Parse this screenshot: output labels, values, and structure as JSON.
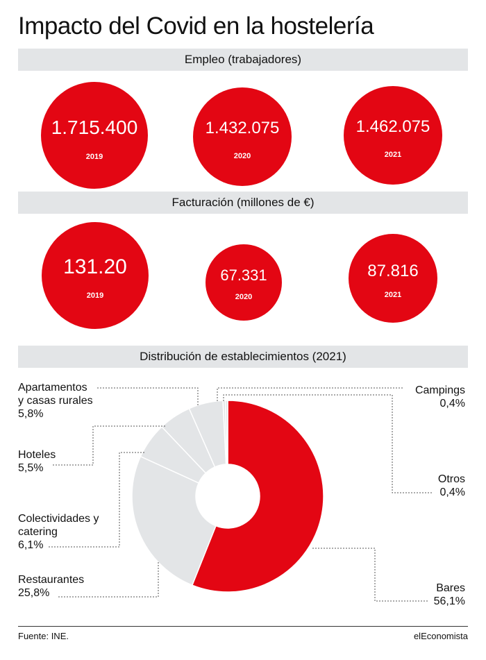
{
  "title": "Impacto del Covid en la hostelería",
  "sections": {
    "empleo": "Empleo (trabajadores)",
    "facturacion": "Facturación (millones de €)",
    "distribucion": "Distribución de establecimientos (2021)"
  },
  "colors": {
    "accent": "#e30613",
    "light": "#e3e5e7",
    "band": "#e3e5e7"
  },
  "chart_data": [
    {
      "type": "bubble",
      "title": "Empleo (trabajadores)",
      "categories": [
        "2019",
        "2020",
        "2021"
      ],
      "values": [
        1715400,
        1432075,
        1462075
      ],
      "labels": [
        "1.715.400",
        "1.432.075",
        "1.462.075"
      ]
    },
    {
      "type": "bubble",
      "title": "Facturación (millones de €)",
      "categories": [
        "2019",
        "2020",
        "2021"
      ],
      "values": [
        131.2,
        67.331,
        87.816
      ],
      "labels": [
        "131.20",
        "67.331",
        "87.816"
      ]
    },
    {
      "type": "pie",
      "title": "Distribución de establecimientos (2021)",
      "slices": [
        {
          "name": "Bares",
          "value": 56.1,
          "label": "56,1%",
          "color": "#e30613"
        },
        {
          "name": "Restaurantes",
          "value": 25.8,
          "label": "25,8%",
          "color": "#e3e5e7"
        },
        {
          "name": "Colectividades y catering",
          "value": 6.1,
          "label": "6,1%",
          "color": "#e3e5e7"
        },
        {
          "name": "Hoteles",
          "value": 5.5,
          "label": "5,5%",
          "color": "#e3e5e7"
        },
        {
          "name": "Apartamentos y casas rurales",
          "value": 5.8,
          "label": "5,8%",
          "color": "#e3e5e7"
        },
        {
          "name": "Campings",
          "value": 0.4,
          "label": "0,4%",
          "color": "#e3e5e7"
        },
        {
          "name": "Otros",
          "value": 0.4,
          "label": "0,4%",
          "color": "#e3e5e7"
        }
      ]
    }
  ],
  "pie_labels": {
    "apartamentos": [
      "Apartamentos",
      "y casas rurales",
      "5,8%"
    ],
    "hoteles": [
      "Hoteles",
      "5,5%"
    ],
    "colectividades": [
      "Colectividades y",
      "catering",
      "6,1%"
    ],
    "restaurantes": [
      "Restaurantes",
      "25,8%"
    ],
    "campings": [
      "Campings",
      "0,4%"
    ],
    "otros": [
      "Otros",
      "0,4%"
    ],
    "bares": [
      "Bares",
      "56,1%"
    ]
  },
  "footer": {
    "source": "Fuente: INE.",
    "brand": "elEconomista"
  }
}
